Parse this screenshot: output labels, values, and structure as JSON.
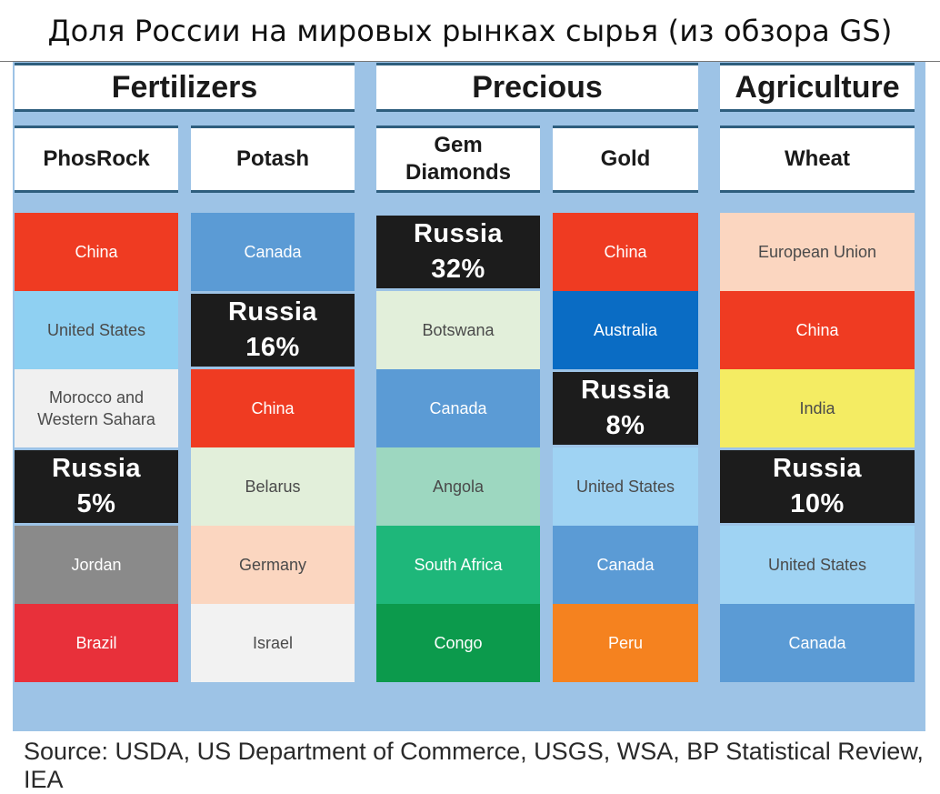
{
  "title": "Доля России на мировых рынках сырья (из обзора GS)",
  "source": "Source: USDA, US Department of Commerce, USGS, WSA, BP Statistical Review, IEA",
  "colors": {
    "panel_bg": "#9dc3e6",
    "rule": "#2e5e7e",
    "russia": "#1c1c1c"
  },
  "chart_data": {
    "type": "table",
    "groups": [
      {
        "name": "Fertilizers",
        "columns": [
          "PhosRock",
          "Potash"
        ]
      },
      {
        "name": "Precious",
        "columns": [
          "Gem\nDiamonds",
          "Gold"
        ]
      },
      {
        "name": "Agriculture",
        "columns": [
          "Wheat"
        ]
      }
    ],
    "columns": [
      {
        "name": "PhosRock",
        "producers": [
          {
            "label": "China",
            "color": "#ef3b22"
          },
          {
            "label": "United States",
            "color": "#8fd0f2"
          },
          {
            "label": "Morocco and\nWestern Sahara",
            "color": "#f0f0f0"
          },
          {
            "label": "Russia\n5%",
            "color": "#1c1c1c",
            "russia": true,
            "share": 5
          },
          {
            "label": "Jordan",
            "color": "#8a8a8a"
          },
          {
            "label": "Brazil",
            "color": "#e8303a"
          }
        ]
      },
      {
        "name": "Potash",
        "producers": [
          {
            "label": "Canada",
            "color": "#5b9bd5"
          },
          {
            "label": "Russia\n16%",
            "color": "#1c1c1c",
            "russia": true,
            "share": 16
          },
          {
            "label": "China",
            "color": "#ef3b22"
          },
          {
            "label": "Belarus",
            "color": "#e2efda"
          },
          {
            "label": "Germany",
            "color": "#fbd6c0"
          },
          {
            "label": "Israel",
            "color": "#f2f2f2"
          }
        ]
      },
      {
        "name": "Gem\nDiamonds",
        "producers": [
          {
            "label": "Russia\n32%",
            "color": "#1c1c1c",
            "russia": true,
            "share": 32
          },
          {
            "label": "Botswana",
            "color": "#e2efda"
          },
          {
            "label": "Canada",
            "color": "#5b9bd5"
          },
          {
            "label": "Angola",
            "color": "#9dd7c0"
          },
          {
            "label": "South Africa",
            "color": "#1eb77a"
          },
          {
            "label": "Congo",
            "color": "#0c9a4c"
          }
        ]
      },
      {
        "name": "Gold",
        "producers": [
          {
            "label": "China",
            "color": "#ef3b22"
          },
          {
            "label": "Australia",
            "color": "#0a6cc4"
          },
          {
            "label": "Russia\n8%",
            "color": "#1c1c1c",
            "russia": true,
            "share": 8
          },
          {
            "label": "United States",
            "color": "#9fd3f3"
          },
          {
            "label": "Canada",
            "color": "#5b9bd5"
          },
          {
            "label": "Peru",
            "color": "#f5821f"
          }
        ]
      },
      {
        "name": "Wheat",
        "producers": [
          {
            "label": "European Union",
            "color": "#fbd6c0"
          },
          {
            "label": "China",
            "color": "#ef3b22"
          },
          {
            "label": "India",
            "color": "#f4ec63"
          },
          {
            "label": "Russia\n10%",
            "color": "#1c1c1c",
            "russia": true,
            "share": 10
          },
          {
            "label": "United States",
            "color": "#9fd3f3"
          },
          {
            "label": "Canada",
            "color": "#5b9bd5"
          }
        ]
      }
    ]
  }
}
